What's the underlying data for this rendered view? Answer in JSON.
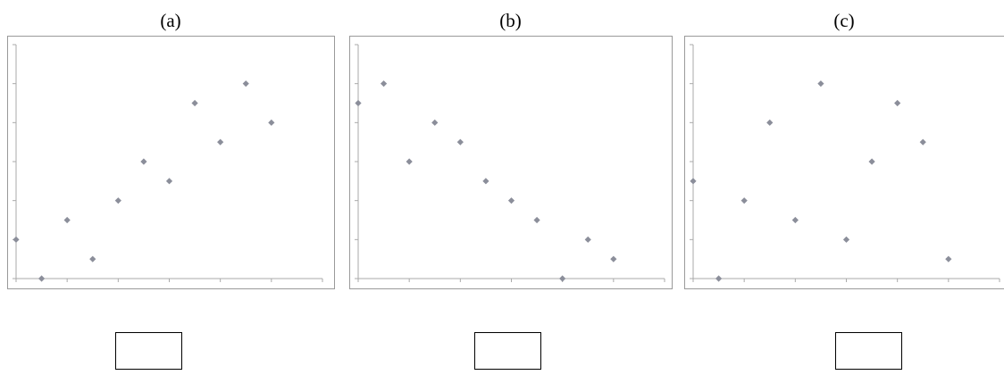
{
  "chart_data": [
    {
      "type": "scatter",
      "title": "(a)",
      "x": [
        0,
        1,
        2,
        3,
        4,
        5,
        6,
        7,
        8,
        9,
        10
      ],
      "values": [
        2,
        0,
        3,
        1,
        4,
        6,
        5,
        9,
        7,
        10,
        8
      ],
      "color": "#8b8e9a",
      "xlim": [
        0,
        12
      ],
      "ylim": [
        0,
        12
      ],
      "xticks": [
        0,
        2,
        4,
        6,
        8,
        10,
        12
      ],
      "yticks": [
        0,
        2,
        4,
        6,
        8,
        10,
        12
      ]
    },
    {
      "type": "scatter",
      "title": "(b)",
      "x": [
        0,
        1,
        2,
        3,
        4,
        5,
        6,
        7,
        8,
        9,
        10
      ],
      "values": [
        9,
        10,
        6,
        8,
        7,
        5,
        4,
        3,
        0,
        2,
        1
      ],
      "color": "#8b8e9a",
      "xlim": [
        0,
        12
      ],
      "ylim": [
        0,
        12
      ],
      "xticks": [
        0,
        2,
        4,
        6,
        8,
        10,
        12
      ],
      "yticks": [
        0,
        2,
        4,
        6,
        8,
        10,
        12
      ]
    },
    {
      "type": "scatter",
      "title": "(c)",
      "x": [
        0,
        1,
        2,
        3,
        4,
        5,
        6,
        7,
        8,
        9,
        10
      ],
      "values": [
        5,
        0,
        4,
        8,
        3,
        10,
        2,
        6,
        9,
        7,
        1
      ],
      "color": "#8b8e9a",
      "xlim": [
        0,
        12
      ],
      "ylim": [
        0,
        12
      ],
      "xticks": [
        0,
        2,
        4,
        6,
        8,
        10,
        12
      ],
      "yticks": [
        0,
        2,
        4,
        6,
        8,
        10,
        12
      ]
    }
  ]
}
